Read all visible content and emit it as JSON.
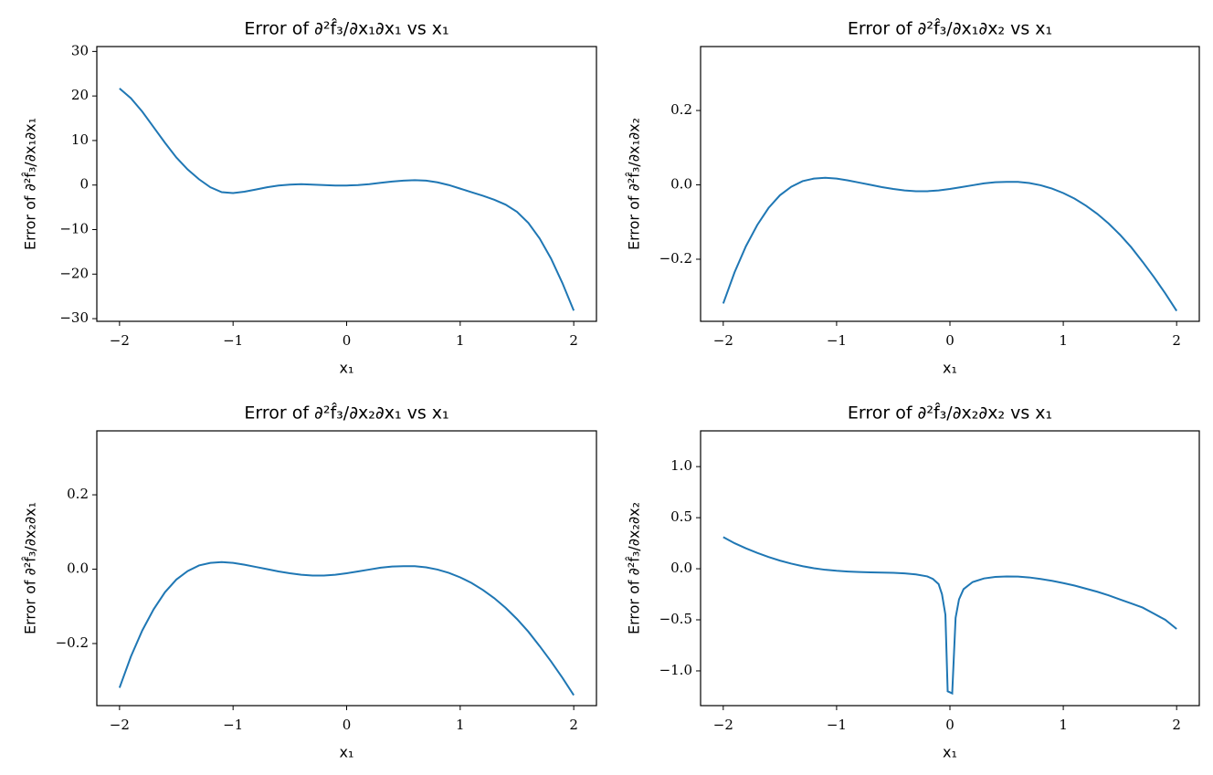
{
  "chart_data": [
    {
      "type": "line",
      "title": "Error of ∂²f̂₃/∂x₁∂x₁ vs x₁",
      "x_label": "x₁",
      "y_label": "Error of ∂²f̂₃/∂x₁∂x₁",
      "color": "#1f77b4",
      "x": [
        -2,
        -1.9,
        -1.8,
        -1.7,
        -1.6,
        -1.5,
        -1.4,
        -1.3,
        -1.2,
        -1.1,
        -1.0,
        -0.9,
        -0.8,
        -0.7,
        -0.6,
        -0.5,
        -0.4,
        -0.3,
        -0.2,
        -0.1,
        0,
        0.1,
        0.2,
        0.3,
        0.4,
        0.5,
        0.6,
        0.7,
        0.8,
        0.9,
        1.0,
        1.1,
        1.2,
        1.3,
        1.4,
        1.5,
        1.6,
        1.7,
        1.8,
        1.9,
        2.0
      ],
      "values": [
        21.7,
        19.5,
        16.5,
        13,
        9.5,
        6.2,
        3.5,
        1.3,
        -0.5,
        -1.6,
        -1.8,
        -1.5,
        -1.0,
        -0.5,
        -0.1,
        0.1,
        0.2,
        0.1,
        0,
        -0.1,
        -0.1,
        0,
        0.2,
        0.5,
        0.8,
        1.0,
        1.1,
        1.0,
        0.6,
        0,
        -0.8,
        -1.6,
        -2.4,
        -3.3,
        -4.4,
        -6,
        -8.5,
        -12,
        -16.5,
        -22,
        -28.2
      ],
      "xlim": [
        -2.2,
        2.2
      ],
      "ylim": [
        -30.6,
        31.1
      ],
      "xticks": [
        {
          "value": -2,
          "label": "−2"
        },
        {
          "value": -1,
          "label": "−1"
        },
        0,
        1,
        2
      ],
      "yticks": [
        {
          "value": -30,
          "label": "−30"
        },
        {
          "value": -20,
          "label": "−20"
        },
        {
          "value": -10,
          "label": "−10"
        },
        0,
        10,
        20,
        30
      ]
    },
    {
      "type": "line",
      "title": "Error of ∂²f̂₃/∂x₁∂x₂ vs x₁",
      "x_label": "x₁",
      "y_label": "Error of ∂²f̂₃/∂x₁∂x₂",
      "color": "#1f77b4",
      "x": [
        -2,
        -1.9,
        -1.8,
        -1.7,
        -1.6,
        -1.5,
        -1.4,
        -1.3,
        -1.2,
        -1.1,
        -1.0,
        -0.9,
        -0.8,
        -0.7,
        -0.6,
        -0.5,
        -0.4,
        -0.3,
        -0.2,
        -0.1,
        0,
        0.1,
        0.2,
        0.3,
        0.4,
        0.5,
        0.6,
        0.7,
        0.8,
        0.9,
        1.0,
        1.1,
        1.2,
        1.3,
        1.4,
        1.5,
        1.6,
        1.7,
        1.8,
        1.9,
        2.0
      ],
      "values": [
        -0.319,
        -0.235,
        -0.165,
        -0.108,
        -0.062,
        -0.028,
        -0.005,
        0.01,
        0.017,
        0.019,
        0.017,
        0.012,
        0.006,
        0.0,
        -0.006,
        -0.011,
        -0.015,
        -0.017,
        -0.017,
        -0.015,
        -0.011,
        -0.006,
        -0.001,
        0.004,
        0.007,
        0.008,
        0.008,
        0.005,
        -0.001,
        -0.01,
        -0.022,
        -0.037,
        -0.056,
        -0.078,
        -0.104,
        -0.134,
        -0.168,
        -0.207,
        -0.248,
        -0.292,
        -0.339
      ],
      "xlim": [
        -2.2,
        2.2
      ],
      "ylim": [
        -0.367,
        0.372
      ],
      "xticks": [
        {
          "value": -2,
          "label": "−2"
        },
        {
          "value": -1,
          "label": "−1"
        },
        0,
        1,
        2
      ],
      "yticks": [
        {
          "value": -0.2,
          "label": "−0.2"
        },
        {
          "value": 0,
          "label": "0.0"
        },
        0.2
      ]
    },
    {
      "type": "line",
      "title": "Error of ∂²f̂₃/∂x₂∂x₁ vs x₁",
      "x_label": "x₁",
      "y_label": "Error of ∂²f̂₃/∂x₂∂x₁",
      "color": "#1f77b4",
      "x": [
        -2,
        -1.9,
        -1.8,
        -1.7,
        -1.6,
        -1.5,
        -1.4,
        -1.3,
        -1.2,
        -1.1,
        -1.0,
        -0.9,
        -0.8,
        -0.7,
        -0.6,
        -0.5,
        -0.4,
        -0.3,
        -0.2,
        -0.1,
        0,
        0.1,
        0.2,
        0.3,
        0.4,
        0.5,
        0.6,
        0.7,
        0.8,
        0.9,
        1.0,
        1.1,
        1.2,
        1.3,
        1.4,
        1.5,
        1.6,
        1.7,
        1.8,
        1.9,
        2.0
      ],
      "values": [
        -0.319,
        -0.235,
        -0.165,
        -0.108,
        -0.062,
        -0.028,
        -0.005,
        0.01,
        0.017,
        0.019,
        0.017,
        0.012,
        0.006,
        0.0,
        -0.006,
        -0.011,
        -0.015,
        -0.017,
        -0.017,
        -0.015,
        -0.011,
        -0.006,
        -0.001,
        0.004,
        0.007,
        0.008,
        0.008,
        0.005,
        -0.001,
        -0.01,
        -0.022,
        -0.037,
        -0.056,
        -0.078,
        -0.104,
        -0.134,
        -0.168,
        -0.207,
        -0.248,
        -0.292,
        -0.339
      ],
      "xlim": [
        -2.2,
        2.2
      ],
      "ylim": [
        -0.367,
        0.372
      ],
      "xticks": [
        {
          "value": -2,
          "label": "−2"
        },
        {
          "value": -1,
          "label": "−1"
        },
        0,
        1,
        2
      ],
      "yticks": [
        {
          "value": -0.2,
          "label": "−0.2"
        },
        {
          "value": 0,
          "label": "0.0"
        },
        0.2
      ]
    },
    {
      "type": "line",
      "title": "Error of ∂²f̂₃/∂x₂∂x₂ vs x₁",
      "x_label": "x₁",
      "y_label": "Error of ∂²f̂₃/∂x₂∂x₂",
      "color": "#1f77b4",
      "x": [
        -2,
        -1.9,
        -1.8,
        -1.7,
        -1.6,
        -1.5,
        -1.4,
        -1.3,
        -1.2,
        -1.1,
        -1.0,
        -0.9,
        -0.8,
        -0.7,
        -0.6,
        -0.5,
        -0.4,
        -0.3,
        -0.2,
        -0.15,
        -0.1,
        -0.07,
        -0.04,
        -0.02,
        0.02,
        0.05,
        0.08,
        0.12,
        0.2,
        0.3,
        0.4,
        0.5,
        0.6,
        0.7,
        0.8,
        0.9,
        1.0,
        1.1,
        1.2,
        1.3,
        1.4,
        1.5,
        1.6,
        1.7,
        1.8,
        1.9,
        2.0
      ],
      "values": [
        0.31,
        0.25,
        0.2,
        0.155,
        0.115,
        0.08,
        0.05,
        0.025,
        0.005,
        -0.01,
        -0.02,
        -0.027,
        -0.032,
        -0.035,
        -0.037,
        -0.04,
        -0.045,
        -0.055,
        -0.075,
        -0.1,
        -0.15,
        -0.25,
        -0.45,
        -1.2,
        -1.22,
        -0.48,
        -0.3,
        -0.2,
        -0.13,
        -0.095,
        -0.08,
        -0.075,
        -0.077,
        -0.085,
        -0.1,
        -0.118,
        -0.14,
        -0.165,
        -0.195,
        -0.225,
        -0.26,
        -0.3,
        -0.34,
        -0.38,
        -0.44,
        -0.5,
        -0.589
      ],
      "xlim": [
        -2.2,
        2.2
      ],
      "ylim": [
        -1.34,
        1.35
      ],
      "xticks": [
        {
          "value": -2,
          "label": "−2"
        },
        {
          "value": -1,
          "label": "−1"
        },
        0,
        1,
        2
      ],
      "yticks": [
        {
          "value": -1,
          "label": "−1.0"
        },
        {
          "value": -0.5,
          "label": "−0.5"
        },
        {
          "value": 0,
          "label": "0.0"
        },
        0.5,
        {
          "value": 1,
          "label": "1.0"
        }
      ]
    }
  ]
}
